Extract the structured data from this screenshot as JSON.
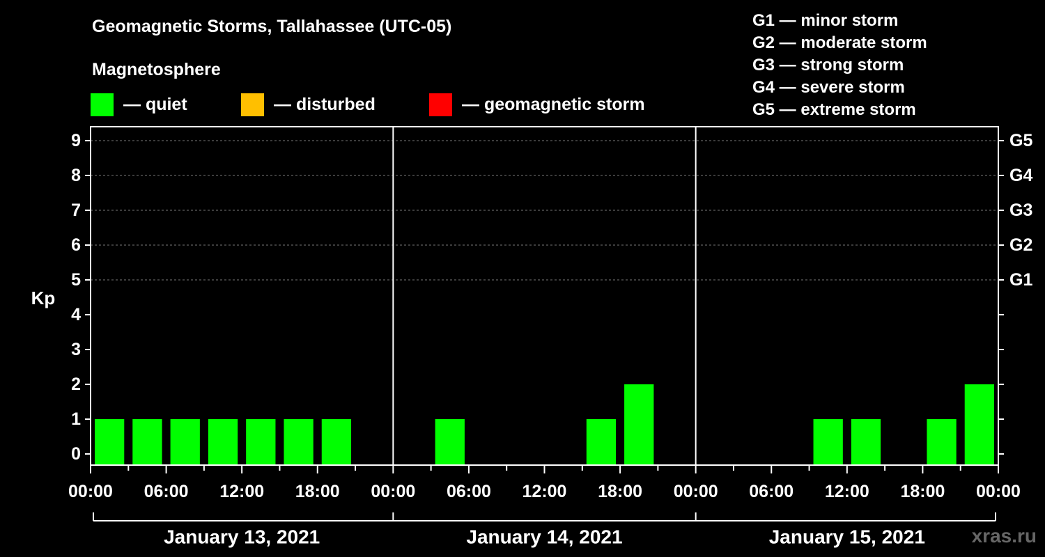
{
  "title": "Geomagnetic Storms, Tallahassee (UTC-05)",
  "subtitle": "Magnetosphere",
  "legend": [
    {
      "label": "— quiet",
      "color": "#00ff00"
    },
    {
      "label": "— disturbed",
      "color": "#ffbf00"
    },
    {
      "label": "— geomagnetic storm",
      "color": "#ff0000"
    }
  ],
  "storm_scale": [
    "G1 — minor storm",
    "G2 — moderate storm",
    "G3 — strong storm",
    "G4 — severe storm",
    "G5 — extreme storm"
  ],
  "watermark": "xras.ru",
  "chart_data": {
    "type": "bar",
    "ylabel": "Kp",
    "ylim": [
      0,
      9
    ],
    "yticks": [
      "0",
      "1",
      "2",
      "3",
      "4",
      "5",
      "6",
      "7",
      "8",
      "9"
    ],
    "g_ticks": [
      {
        "kp": 5,
        "label": "G1"
      },
      {
        "kp": 6,
        "label": "G2"
      },
      {
        "kp": 7,
        "label": "G3"
      },
      {
        "kp": 8,
        "label": "G4"
      },
      {
        "kp": 9,
        "label": "G5"
      }
    ],
    "grid": "dashed horizontal at Kp 5-9",
    "days": [
      "January 13, 2021",
      "January 14, 2021",
      "January 15, 2021"
    ],
    "xtick_labels": [
      "00:00",
      "06:00",
      "12:00",
      "18:00",
      "00:00",
      "06:00",
      "12:00",
      "18:00",
      "00:00",
      "06:00",
      "12:00",
      "18:00",
      "00:00"
    ],
    "bars": [
      {
        "day": 0,
        "start_hour": 0,
        "end_hour": 3,
        "kp": 1,
        "color": "#00ff00"
      },
      {
        "day": 0,
        "start_hour": 3,
        "end_hour": 6,
        "kp": 1,
        "color": "#00ff00"
      },
      {
        "day": 0,
        "start_hour": 6,
        "end_hour": 9,
        "kp": 1,
        "color": "#00ff00"
      },
      {
        "day": 0,
        "start_hour": 9,
        "end_hour": 12,
        "kp": 1,
        "color": "#00ff00"
      },
      {
        "day": 0,
        "start_hour": 12,
        "end_hour": 15,
        "kp": 1,
        "color": "#00ff00"
      },
      {
        "day": 0,
        "start_hour": 15,
        "end_hour": 18,
        "kp": 1,
        "color": "#00ff00"
      },
      {
        "day": 0,
        "start_hour": 18,
        "end_hour": 21,
        "kp": 1,
        "color": "#00ff00"
      },
      {
        "day": 1,
        "start_hour": 3,
        "end_hour": 6,
        "kp": 1,
        "color": "#00ff00"
      },
      {
        "day": 1,
        "start_hour": 15,
        "end_hour": 18,
        "kp": 1,
        "color": "#00ff00"
      },
      {
        "day": 1,
        "start_hour": 18,
        "end_hour": 21,
        "kp": 2,
        "color": "#00ff00"
      },
      {
        "day": 2,
        "start_hour": 9,
        "end_hour": 12,
        "kp": 1,
        "color": "#00ff00"
      },
      {
        "day": 2,
        "start_hour": 12,
        "end_hour": 15,
        "kp": 1,
        "color": "#00ff00"
      },
      {
        "day": 2,
        "start_hour": 18,
        "end_hour": 21,
        "kp": 1,
        "color": "#00ff00"
      },
      {
        "day": 2,
        "start_hour": 21,
        "end_hour": 24,
        "kp": 2,
        "color": "#00ff00"
      }
    ]
  }
}
